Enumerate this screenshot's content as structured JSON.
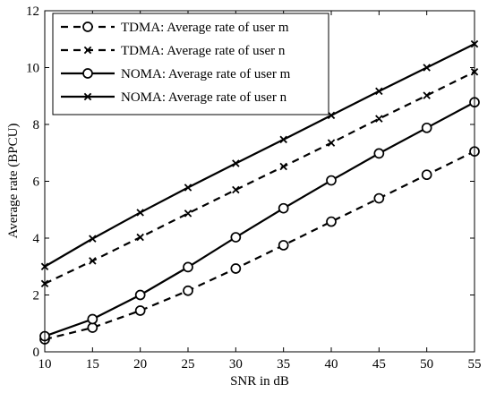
{
  "chart_data": {
    "type": "line",
    "xlabel": "SNR in dB",
    "ylabel": "Average rate (BPCU)",
    "xlim": [
      10,
      55
    ],
    "ylim": [
      0,
      12
    ],
    "xticks": [
      10,
      15,
      20,
      25,
      30,
      35,
      40,
      45,
      50,
      55
    ],
    "yticks": [
      0,
      2,
      4,
      6,
      8,
      10,
      12
    ],
    "grid": false,
    "legend_position": "top-left",
    "x": [
      10,
      15,
      20,
      25,
      30,
      35,
      40,
      45,
      50,
      55
    ],
    "series": [
      {
        "name": "TDMA: Average rate of user m",
        "line_style": "dashed",
        "marker": "circle",
        "color": "#000000",
        "values": [
          0.44,
          0.85,
          1.45,
          2.15,
          2.93,
          3.75,
          4.58,
          5.4,
          6.23,
          7.05
        ]
      },
      {
        "name": "TDMA: Average rate of user n",
        "line_style": "dashed",
        "marker": "x",
        "color": "#000000",
        "values": [
          2.4,
          3.2,
          4.03,
          4.87,
          5.7,
          6.52,
          7.35,
          8.2,
          9.02,
          9.85
        ]
      },
      {
        "name": "NOMA: Average rate of user m",
        "line_style": "solid",
        "marker": "circle",
        "color": "#000000",
        "values": [
          0.55,
          1.15,
          2.0,
          2.98,
          4.03,
          5.05,
          6.03,
          6.98,
          7.88,
          8.78
        ]
      },
      {
        "name": "NOMA: Average rate of user n",
        "line_style": "solid",
        "marker": "x",
        "color": "#000000",
        "values": [
          3.0,
          3.98,
          4.9,
          5.78,
          6.63,
          7.47,
          8.32,
          9.17,
          10.0,
          10.83
        ]
      }
    ]
  }
}
